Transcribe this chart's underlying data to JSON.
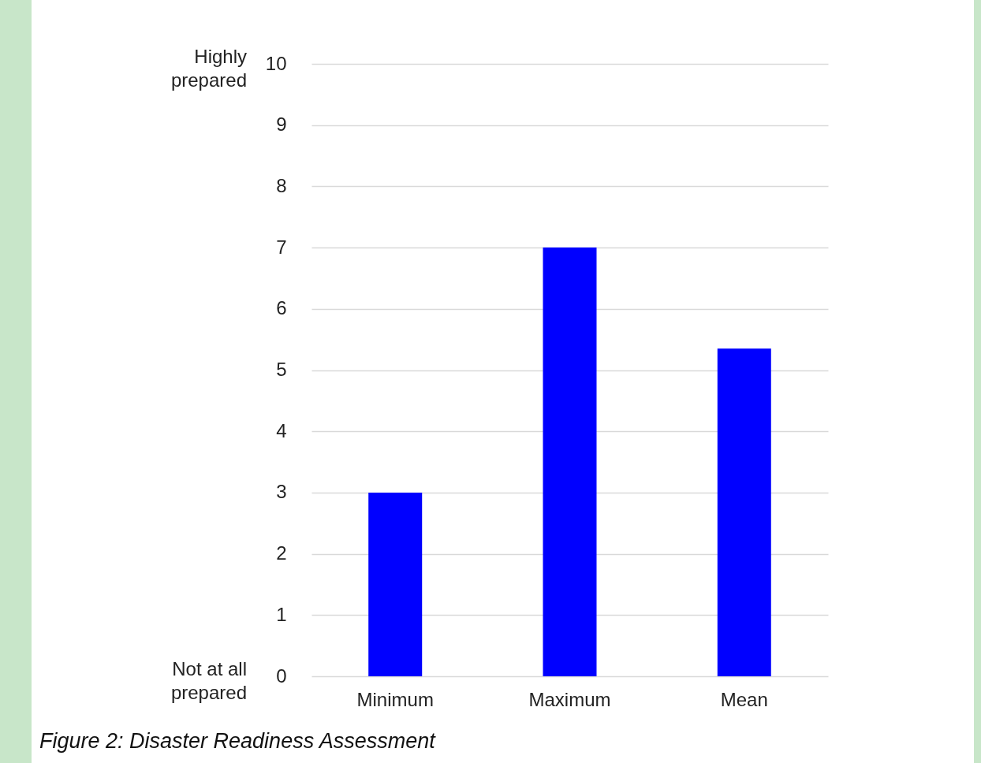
{
  "chart_data": {
    "type": "bar",
    "title": "Figure 2: Disaster Readiness Assessment",
    "categories": [
      "Minimum",
      "Maximum",
      "Mean"
    ],
    "values": [
      3,
      7,
      5.35
    ],
    "color": "#0000ff",
    "ylim": [
      0,
      10
    ],
    "yticks": [
      0,
      1,
      2,
      3,
      4,
      5,
      6,
      7,
      8,
      9,
      10
    ],
    "grid": "y",
    "annotations": [
      "Highly prepared",
      "Not at all prepared"
    ]
  }
}
